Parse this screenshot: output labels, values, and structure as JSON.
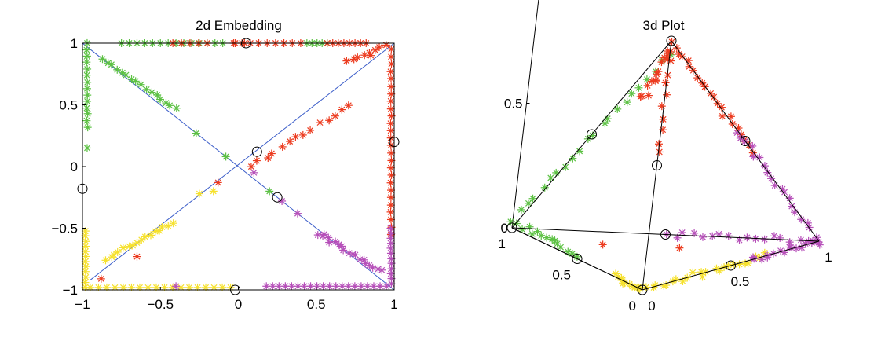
{
  "chart_data": [
    {
      "type": "scatter",
      "title": "2d Embedding",
      "xlim": [
        -1,
        1
      ],
      "ylim": [
        -1,
        1
      ],
      "xticks": [
        "−1",
        "−0.5",
        "0",
        "0.5",
        "1"
      ],
      "yticks": [
        "1",
        "0.5",
        "0",
        "−0.5",
        "−1"
      ],
      "xtick_values": [
        -1,
        -0.5,
        0,
        0.5,
        1
      ],
      "ytick_values": [
        1,
        0.5,
        0,
        -0.5,
        -1
      ],
      "grid": false,
      "colors": {
        "green": "#5cc143",
        "red": "#ec3a1e",
        "yellow": "#f6e12c",
        "magenta": "#b64fb9",
        "line": "#3b5dc9",
        "circle": "#000000"
      },
      "lines": [
        {
          "x": [
            -1,
            1
          ],
          "y": [
            1,
            -1
          ],
          "color": "line"
        },
        {
          "x": [
            -0.95,
            1
          ],
          "y": [
            -0.92,
            1
          ],
          "color": "line"
        },
        {
          "x": [
            -1,
            -1
          ],
          "y": [
            1,
            -1
          ],
          "color": "line"
        },
        {
          "x": [
            -1,
            1
          ],
          "y": [
            -1,
            -1
          ],
          "color": "line"
        },
        {
          "x": [
            1,
            1
          ],
          "y": [
            1,
            -1
          ],
          "color": "line"
        }
      ],
      "series": [
        {
          "color": "green",
          "segments": [
            {
              "from": [
                -0.97,
                1.0
              ],
              "to": [
                -0.97,
                0.32
              ],
              "count": 14,
              "jitter": 0.004
            },
            {
              "from": [
                -0.87,
                0.87
              ],
              "to": [
                -0.4,
                0.47
              ],
              "count": 16,
              "jitter": 0.01
            },
            {
              "from": [
                -0.75,
                1.0
              ],
              "to": [
                -0.1,
                1.0
              ],
              "count": 14,
              "jitter": 0.0
            },
            {
              "from": [
                0.44,
                1.0
              ],
              "to": [
                0.57,
                1.0
              ],
              "count": 5,
              "jitter": 0.0
            }
          ],
          "points": [
            [
              -0.97,
              0.15
            ],
            [
              -0.27,
              0.27
            ],
            [
              -0.08,
              0.08
            ],
            [
              0.2,
              -0.2
            ]
          ]
        },
        {
          "color": "red",
          "segments": [
            {
              "from": [
                0.08,
                0.0
              ],
              "to": [
                0.72,
                0.5
              ],
              "count": 14,
              "jitter": 0.015
            },
            {
              "from": [
                0.7,
                0.86
              ],
              "to": [
                0.95,
                0.98
              ],
              "count": 8,
              "jitter": 0.01
            },
            {
              "from": [
                -0.42,
                1.0
              ],
              "to": [
                -0.2,
                1.0
              ],
              "count": 5,
              "jitter": 0.0
            },
            {
              "from": [
                -0.03,
                1.0
              ],
              "to": [
                0.4,
                1.0
              ],
              "count": 9,
              "jitter": 0.0
            },
            {
              "from": [
                0.57,
                1.0
              ],
              "to": [
                0.82,
                1.0
              ],
              "count": 8,
              "jitter": 0.0
            },
            {
              "from": [
                0.98,
                0.95
              ],
              "to": [
                0.98,
                -0.55
              ],
              "count": 26,
              "jitter": 0.003
            }
          ],
          "points": [
            [
              -0.02,
              1.0
            ],
            [
              0.04,
              1.0
            ],
            [
              0.85,
              0.9
            ],
            [
              -0.88,
              -0.91
            ],
            [
              -0.65,
              -0.73
            ],
            [
              -0.13,
              -0.13
            ]
          ]
        },
        {
          "color": "yellow",
          "segments": [
            {
              "from": [
                -0.98,
                -0.52
              ],
              "to": [
                -0.98,
                -0.98
              ],
              "count": 12,
              "jitter": 0.003
            },
            {
              "from": [
                -0.95,
                -0.98
              ],
              "to": [
                -0.05,
                -0.98
              ],
              "count": 18,
              "jitter": 0.0
            },
            {
              "from": [
                -0.85,
                -0.75
              ],
              "to": [
                -0.42,
                -0.45
              ],
              "count": 16,
              "jitter": 0.012
            }
          ],
          "points": [
            [
              -0.25,
              -0.22
            ],
            [
              -0.16,
              -0.2
            ]
          ]
        },
        {
          "color": "magenta",
          "segments": [
            {
              "from": [
                0.52,
                -0.55
              ],
              "to": [
                0.92,
                -0.85
              ],
              "count": 18,
              "jitter": 0.012
            },
            {
              "from": [
                0.18,
                -0.97
              ],
              "to": [
                0.95,
                -0.97
              ],
              "count": 20,
              "jitter": 0.0
            },
            {
              "from": [
                0.98,
                -0.5
              ],
              "to": [
                0.98,
                -0.95
              ],
              "count": 12,
              "jitter": 0.003
            }
          ],
          "points": [
            [
              -0.4,
              -0.97
            ],
            [
              0.1,
              -0.05
            ],
            [
              0.38,
              -0.38
            ],
            [
              0.28,
              -0.28
            ],
            [
              0.55,
              -0.55
            ]
          ]
        }
      ],
      "circles": [
        [
          0.05,
          1.0
        ],
        [
          0.12,
          0.12
        ],
        [
          0.25,
          -0.25
        ],
        [
          -1.0,
          -0.18
        ],
        [
          -0.02,
          -1.0
        ],
        [
          1.0,
          0.2
        ]
      ]
    },
    {
      "type": "scatter",
      "title": "3d Plot",
      "xticks": [
        "1",
        "0.5",
        "0"
      ],
      "yticks": [
        "0",
        "0.5",
        "1"
      ],
      "zticks": [
        "1",
        "0.5",
        "0"
      ],
      "xtick_values": [
        1,
        0.5,
        0
      ],
      "ytick_values": [
        0,
        0.5,
        1
      ],
      "ztick_values": [
        1,
        0.5,
        0
      ],
      "grid": false,
      "colors": {
        "green": "#5cc143",
        "red": "#ec3a1e",
        "yellow": "#f6e12c",
        "magenta": "#b64fb9",
        "line": "#000000",
        "circle": "#000000"
      },
      "lines": [
        {
          "from": [
            0,
            0,
            1
          ],
          "to": [
            1,
            0,
            0
          ],
          "color": "line"
        },
        {
          "from": [
            0,
            0,
            1
          ],
          "to": [
            0,
            1,
            0
          ],
          "color": "line"
        },
        {
          "from": [
            0,
            0,
            1
          ],
          "to": [
            0,
            0,
            0
          ],
          "color": "line"
        },
        {
          "from": [
            1,
            0,
            0
          ],
          "to": [
            0,
            1,
            0
          ],
          "color": "line"
        },
        {
          "from": [
            1,
            0,
            0
          ],
          "to": [
            0,
            0,
            0
          ],
          "color": "line"
        },
        {
          "from": [
            0,
            1,
            0
          ],
          "to": [
            0,
            0,
            0
          ],
          "color": "line"
        }
      ],
      "series": [
        {
          "color": "green",
          "segments": [
            {
              "from": [
                0,
                0,
                0.95
              ],
              "to": [
                1,
                0,
                0.03
              ],
              "count": 22,
              "jitter": 0.01
            },
            {
              "from": [
                0.96,
                0,
                0.02
              ],
              "to": [
                0.5,
                0,
                0.02
              ],
              "count": 14,
              "jitter": 0.012
            }
          ]
        },
        {
          "color": "red",
          "segments": [
            {
              "from": [
                0,
                0,
                1
              ],
              "to": [
                0,
                0.55,
                0.45
              ],
              "count": 22,
              "jitter": 0.01
            },
            {
              "from": [
                0,
                0,
                0.97
              ],
              "to": [
                0.22,
                0.04,
                0.7
              ],
              "count": 14,
              "jitter": 0.015
            },
            {
              "from": [
                0.02,
                0.02,
                0.95
              ],
              "to": [
                0.0,
                0.0,
                0.55
              ],
              "count": 10,
              "jitter": 0.01
            }
          ],
          "points": [
            [
              0.45,
              0.1,
              0.05
            ],
            [
              0.2,
              0.35,
              0.05
            ]
          ]
        },
        {
          "color": "yellow",
          "segments": [
            {
              "from": [
                0.0,
                0.02,
                0.0
              ],
              "to": [
                0.0,
                0.7,
                0.0
              ],
              "count": 24,
              "jitter": 0.012
            },
            {
              "from": [
                0.22,
                0.0,
                0.0
              ],
              "to": [
                0.0,
                0.0,
                0.0
              ],
              "count": 12,
              "jitter": 0.01
            }
          ]
        },
        {
          "color": "magenta",
          "segments": [
            {
              "from": [
                0,
                0.45,
                0.55
              ],
              "to": [
                0,
                1,
                0
              ],
              "count": 20,
              "jitter": 0.01
            },
            {
              "from": [
                0.5,
                0.5,
                0.0
              ],
              "to": [
                0.0,
                1.0,
                0.0
              ],
              "count": 18,
              "jitter": 0.012
            },
            {
              "from": [
                0.0,
                0.62,
                0.0
              ],
              "to": [
                0.0,
                1.0,
                0.0
              ],
              "count": 16,
              "jitter": 0.01
            }
          ]
        }
      ],
      "circles": [
        [
          0,
          0,
          1
        ],
        [
          0.5,
          0,
          0.5
        ],
        [
          0,
          0.5,
          0.5
        ],
        [
          1,
          0,
          0
        ],
        [
          0.5,
          0.5,
          0
        ],
        [
          0,
          0.5,
          0
        ],
        [
          0.5,
          0,
          0
        ],
        [
          0,
          0,
          0.5
        ],
        [
          0,
          0,
          0
        ]
      ]
    }
  ]
}
